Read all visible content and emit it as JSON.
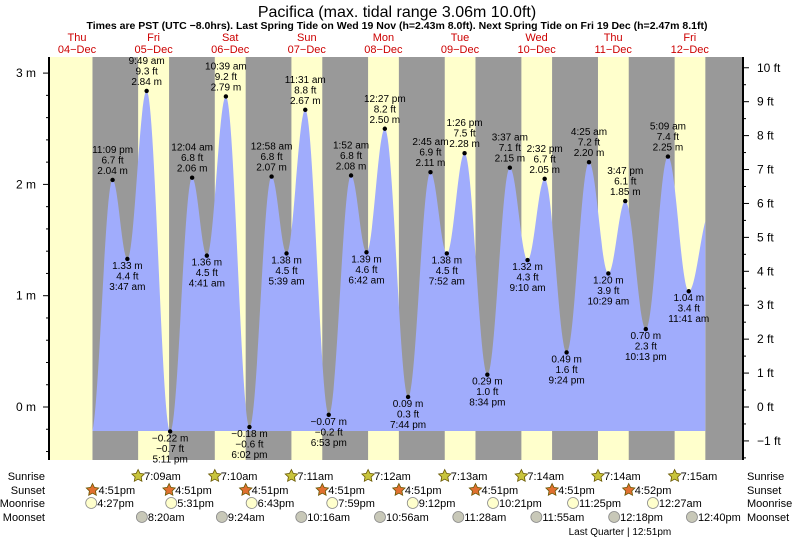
{
  "chart_data": {
    "type": "area",
    "title": "Pacifica (max. tidal range 3.06m 10.0ft)",
    "subtitle": "Times are PST (UTC −8.0hrs). Last Spring Tide on Wed 19 Nov (h=2.43m 8.0ft). Next Spring Tide on Fri 19 Dec (h=2.47m 8.1ft)",
    "days": [
      {
        "dow": "Thu",
        "date": "04−Dec"
      },
      {
        "dow": "Fri",
        "date": "05−Dec"
      },
      {
        "dow": "Sat",
        "date": "06−Dec"
      },
      {
        "dow": "Sun",
        "date": "07−Dec"
      },
      {
        "dow": "Mon",
        "date": "08−Dec"
      },
      {
        "dow": "Tue",
        "date": "09−Dec"
      },
      {
        "dow": "Wed",
        "date": "10−Dec"
      },
      {
        "dow": "Thu",
        "date": "11−Dec"
      },
      {
        "dow": "Fri",
        "date": "12−Dec"
      }
    ],
    "y_left": {
      "unit": "m",
      "ticks": [
        "−0",
        "0 m",
        "1 m",
        "2 m",
        "3 m"
      ],
      "values": [
        0,
        1,
        2,
        3
      ]
    },
    "y_left_labels": [
      "0 m",
      "1 m",
      "2 m",
      "3 m"
    ],
    "y_right_labels": [
      "−1 ft",
      "0 ft",
      "1 ft",
      "2 ft",
      "3 ft",
      "4 ft",
      "5 ft",
      "6 ft",
      "7 ft",
      "8 ft",
      "9 ft",
      "10 ft"
    ],
    "ylim_m": [
      -0.45,
      3.15
    ],
    "extremes": [
      {
        "day": 4,
        "time": "11:09 pm",
        "type": "high",
        "ft": "6.7 ft",
        "m": "2.04 m",
        "h": 2.04,
        "hr": 23.15
      },
      {
        "day": 5,
        "time": "3:47 am",
        "type": "low",
        "ft": "4.4 ft",
        "m": "1.33 m",
        "h": 1.33,
        "hr": 3.78
      },
      {
        "day": 5,
        "time": "9:49 am",
        "type": "high",
        "ft": "9.3 ft",
        "m": "2.84 m",
        "h": 2.84,
        "hr": 9.82
      },
      {
        "day": 5,
        "time": "5:11 pm",
        "type": "low",
        "ft": "−0.7 ft",
        "m": "−0.22 m",
        "h": -0.22,
        "hr": 17.18
      },
      {
        "day": 6,
        "time": "12:04 am",
        "type": "high",
        "ft": "6.8 ft",
        "m": "2.06 m",
        "h": 2.06,
        "hr": 0.07
      },
      {
        "day": 6,
        "time": "4:41 am",
        "type": "low",
        "ft": "4.5 ft",
        "m": "1.36 m",
        "h": 1.36,
        "hr": 4.68
      },
      {
        "day": 6,
        "time": "10:39 am",
        "type": "high",
        "ft": "9.2 ft",
        "m": "2.79 m",
        "h": 2.79,
        "hr": 10.65
      },
      {
        "day": 6,
        "time": "6:02 pm",
        "type": "low",
        "ft": "−0.6 ft",
        "m": "−0.18 m",
        "h": -0.18,
        "hr": 18.03
      },
      {
        "day": 7,
        "time": "12:58 am",
        "type": "high",
        "ft": "6.8 ft",
        "m": "2.07 m",
        "h": 2.07,
        "hr": 0.97
      },
      {
        "day": 7,
        "time": "5:39 am",
        "type": "low",
        "ft": "4.5 ft",
        "m": "1.38 m",
        "h": 1.38,
        "hr": 5.65
      },
      {
        "day": 7,
        "time": "11:31 am",
        "type": "high",
        "ft": "8.8 ft",
        "m": "2.67 m",
        "h": 2.67,
        "hr": 11.52
      },
      {
        "day": 7,
        "time": "6:53 pm",
        "type": "low",
        "ft": "−0.2 ft",
        "m": "−0.07 m",
        "h": -0.07,
        "hr": 18.88
      },
      {
        "day": 8,
        "time": "1:52 am",
        "type": "high",
        "ft": "6.8 ft",
        "m": "2.08 m",
        "h": 2.08,
        "hr": 1.87
      },
      {
        "day": 8,
        "time": "6:42 am",
        "type": "low",
        "ft": "4.6 ft",
        "m": "1.39 m",
        "h": 1.39,
        "hr": 6.7
      },
      {
        "day": 8,
        "time": "12:27 pm",
        "type": "high",
        "ft": "8.2 ft",
        "m": "2.50 m",
        "h": 2.5,
        "hr": 12.45
      },
      {
        "day": 8,
        "time": "7:44 pm",
        "type": "low",
        "ft": "0.3 ft",
        "m": "0.09 m",
        "h": 0.09,
        "hr": 19.73
      },
      {
        "day": 9,
        "time": "2:45 am",
        "type": "high",
        "ft": "6.9 ft",
        "m": "2.11 m",
        "h": 2.11,
        "hr": 2.75
      },
      {
        "day": 9,
        "time": "7:52 am",
        "type": "low",
        "ft": "4.5 ft",
        "m": "1.38 m",
        "h": 1.38,
        "hr": 7.87
      },
      {
        "day": 9,
        "time": "1:26 pm",
        "type": "high",
        "ft": "7.5 ft",
        "m": "2.28 m",
        "h": 2.28,
        "hr": 13.43
      },
      {
        "day": 9,
        "time": "8:34 pm",
        "type": "low",
        "ft": "1.0 ft",
        "m": "0.29 m",
        "h": 0.29,
        "hr": 20.57
      },
      {
        "day": 10,
        "time": "3:37 am",
        "type": "high",
        "ft": "7.1 ft",
        "m": "2.15 m",
        "h": 2.15,
        "hr": 3.62
      },
      {
        "day": 10,
        "time": "9:10 am",
        "type": "low",
        "ft": "4.3 ft",
        "m": "1.32 m",
        "h": 1.32,
        "hr": 9.17
      },
      {
        "day": 10,
        "time": "2:32 pm",
        "type": "high",
        "ft": "6.7 ft",
        "m": "2.05 m",
        "h": 2.05,
        "hr": 14.53
      },
      {
        "day": 10,
        "time": "9:24 pm",
        "type": "low",
        "ft": "1.6 ft",
        "m": "0.49 m",
        "h": 0.49,
        "hr": 21.4
      },
      {
        "day": 11,
        "time": "4:25 am",
        "type": "high",
        "ft": "7.2 ft",
        "m": "2.20 m",
        "h": 2.2,
        "hr": 4.42
      },
      {
        "day": 11,
        "time": "10:29 am",
        "type": "low",
        "ft": "3.9 ft",
        "m": "1.20 m",
        "h": 1.2,
        "hr": 10.48
      },
      {
        "day": 11,
        "time": "3:47 pm",
        "type": "high",
        "ft": "6.1 ft",
        "m": "1.85 m",
        "h": 1.85,
        "hr": 15.78
      },
      {
        "day": 11,
        "time": "10:13 pm",
        "type": "low",
        "ft": "2.3 ft",
        "m": "0.70 m",
        "h": 0.7,
        "hr": 22.22
      },
      {
        "day": 12,
        "time": "5:09 am",
        "type": "high",
        "ft": "7.4 ft",
        "m": "2.25 m",
        "h": 2.25,
        "hr": 5.15
      },
      {
        "day": 12,
        "time": "11:41 am",
        "type": "low",
        "ft": "3.4 ft",
        "m": "1.04 m",
        "h": 1.04,
        "hr": 11.68
      }
    ],
    "colors": {
      "tide": "#a0acfc",
      "day": "#ffffcc",
      "night": "#999999",
      "day_label": "#cc0000",
      "sunrise": "#c8c43c",
      "sunset": "#e07030",
      "moonrise": "#ffffcc",
      "moonset": "#c8c8b8"
    }
  },
  "rows": {
    "sunrise": "Sunrise",
    "sunset": "Sunset",
    "moonrise": "Moonrise",
    "moonset": "Moonset"
  },
  "sunrise": [
    {
      "day": 5,
      "t": "7:09am",
      "hr": 7.15
    },
    {
      "day": 6,
      "t": "7:10am",
      "hr": 7.17
    },
    {
      "day": 7,
      "t": "7:11am",
      "hr": 7.18
    },
    {
      "day": 8,
      "t": "7:12am",
      "hr": 7.2
    },
    {
      "day": 9,
      "t": "7:13am",
      "hr": 7.22
    },
    {
      "day": 10,
      "t": "7:14am",
      "hr": 7.23
    },
    {
      "day": 11,
      "t": "7:14am",
      "hr": 7.23
    },
    {
      "day": 12,
      "t": "7:15am",
      "hr": 7.25
    }
  ],
  "sunset": [
    {
      "day": 4,
      "t": "4:51pm",
      "hr": 16.85
    },
    {
      "day": 5,
      "t": "4:51pm",
      "hr": 16.85
    },
    {
      "day": 6,
      "t": "4:51pm",
      "hr": 16.85
    },
    {
      "day": 7,
      "t": "4:51pm",
      "hr": 16.85
    },
    {
      "day": 8,
      "t": "4:51pm",
      "hr": 16.85
    },
    {
      "day": 9,
      "t": "4:51pm",
      "hr": 16.85
    },
    {
      "day": 10,
      "t": "4:51pm",
      "hr": 16.85
    },
    {
      "day": 11,
      "t": "4:52pm",
      "hr": 16.87
    }
  ],
  "moonrise": [
    {
      "day": 4,
      "t": "4:27pm",
      "hr": 16.45
    },
    {
      "day": 5,
      "t": "5:31pm",
      "hr": 17.52
    },
    {
      "day": 6,
      "t": "6:43pm",
      "hr": 18.72
    },
    {
      "day": 7,
      "t": "7:59pm",
      "hr": 19.98
    },
    {
      "day": 8,
      "t": "9:12pm",
      "hr": 21.2
    },
    {
      "day": 9,
      "t": "10:21pm",
      "hr": 22.35
    },
    {
      "day": 10,
      "t": "11:25pm",
      "hr": 23.42
    },
    {
      "day": 12,
      "t": "12:27am",
      "hr": 0.45
    }
  ],
  "moonset": [
    {
      "day": 5,
      "t": "8:20am",
      "hr": 8.33
    },
    {
      "day": 6,
      "t": "9:24am",
      "hr": 9.4
    },
    {
      "day": 7,
      "t": "10:16am",
      "hr": 10.27
    },
    {
      "day": 8,
      "t": "10:56am",
      "hr": 10.93
    },
    {
      "day": 9,
      "t": "11:28am",
      "hr": 11.47
    },
    {
      "day": 10,
      "t": "11:55am",
      "hr": 11.92
    },
    {
      "day": 11,
      "t": "12:18pm",
      "hr": 12.3
    },
    {
      "day": 12,
      "t": "12:40pm",
      "hr": 12.67
    }
  ],
  "moon_phase": {
    "label": "Last Quarter | 12:51pm",
    "day": 11,
    "hr": 12.85
  }
}
